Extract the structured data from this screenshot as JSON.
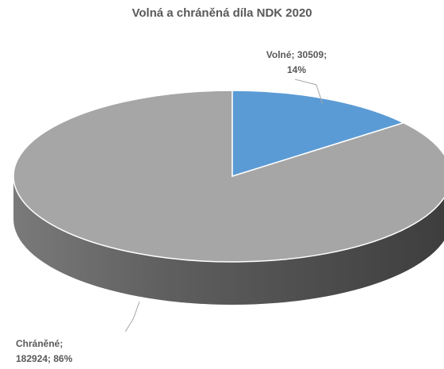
{
  "chart_data": {
    "type": "pie",
    "title": "Volná a chráněná díla NDK 2020",
    "slices": [
      {
        "name": "Volné",
        "value": 30509,
        "percent": "14%",
        "color": "#5b9bd5"
      },
      {
        "name": "Chráněné",
        "value": 182924,
        "percent": "86%",
        "color": "#a6a6a6"
      }
    ],
    "labels": {
      "free_line1": "Volné; 30509;",
      "free_line2": "14%",
      "protected_line1": "Chráněné;",
      "protected_line2": "182924; 86%"
    }
  }
}
